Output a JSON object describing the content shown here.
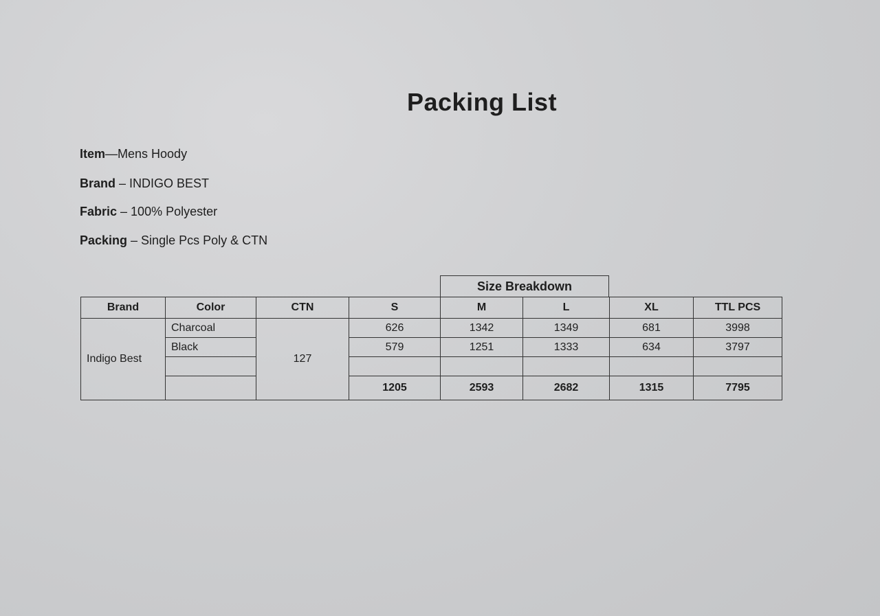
{
  "title": "Packing List",
  "info": [
    {
      "label": "Item",
      "sep": "—",
      "value": "Mens  Hoody"
    },
    {
      "label": "Brand",
      "sep": " – ",
      "value": "INDIGO BEST"
    },
    {
      "label": "Fabric",
      "sep": " – ",
      "value": "100% Polyester"
    },
    {
      "label": "Packing",
      "sep": " – ",
      "value": "Single Pcs Poly & CTN"
    }
  ],
  "table": {
    "group_header": "Size Breakdown",
    "headers": [
      "Brand",
      "Color",
      "CTN",
      "S",
      "M",
      "L",
      "XL",
      "TTL PCS"
    ],
    "brand": "Indigo Best",
    "ctn": "127",
    "rows": [
      {
        "color": "Charcoal",
        "S": "626",
        "M": "1342",
        "L": "1349",
        "XL": "681",
        "TTL": "3998"
      },
      {
        "color": "Black",
        "S": "579",
        "M": "1251",
        "L": "1333",
        "XL": "634",
        "TTL": "3797"
      }
    ],
    "totals": {
      "S": "1205",
      "M": "2593",
      "L": "2682",
      "XL": "1315",
      "TTL": "7795"
    }
  }
}
